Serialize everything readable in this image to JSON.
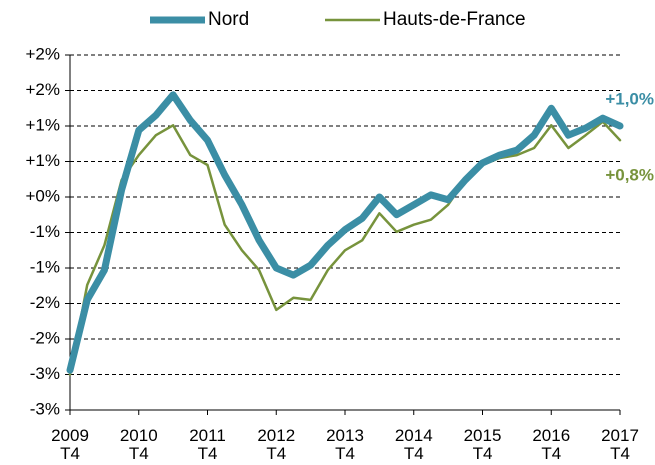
{
  "chart_data": {
    "type": "line",
    "categories": [
      "2009\nT4",
      null,
      null,
      null,
      "2010\nT4",
      null,
      null,
      null,
      "2011\nT4",
      null,
      null,
      null,
      "2012\nT4",
      null,
      null,
      null,
      "2013\nT4",
      null,
      null,
      null,
      "2014\nT4",
      null,
      null,
      null,
      "2015\nT4",
      null,
      null,
      null,
      "2016\nT4",
      null,
      null,
      null,
      "2017\nT4"
    ],
    "series": [
      {
        "name": "Nord",
        "color": "#3b8ea5",
        "values": [
          -2.44,
          -1.45,
          -1.03,
          0.1,
          0.94,
          1.15,
          1.44,
          1.08,
          0.8,
          0.31,
          -0.11,
          -0.61,
          -1.0,
          -1.1,
          -0.96,
          -0.68,
          -0.46,
          -0.3,
          0.0,
          -0.25,
          -0.11,
          0.03,
          -0.04,
          0.24,
          0.48,
          0.59,
          0.66,
          0.87,
          1.25,
          0.87,
          0.97,
          1.11,
          1.0
        ],
        "value_labels": [
          null,
          null,
          null,
          null,
          null,
          null,
          null,
          null,
          null,
          null,
          null,
          null,
          null,
          null,
          null,
          null,
          null,
          null,
          null,
          null,
          null,
          null,
          null,
          null,
          null,
          null,
          null,
          null,
          null,
          null,
          null,
          null,
          "+1,0%"
        ]
      },
      {
        "name": "Hauts-de-France",
        "color": "#77933c",
        "values": [
          -2.5,
          -1.24,
          -0.68,
          0.24,
          0.59,
          0.87,
          1.01,
          0.59,
          0.45,
          -0.39,
          -0.75,
          -1.03,
          -1.59,
          -1.42,
          -1.45,
          -1.03,
          -0.75,
          -0.61,
          -0.23,
          -0.49,
          -0.39,
          -0.32,
          -0.11,
          0.24,
          0.45,
          0.55,
          0.59,
          0.69,
          1.01,
          0.69,
          0.87,
          1.06,
          0.8
        ],
        "value_labels": [
          null,
          null,
          null,
          null,
          null,
          null,
          null,
          null,
          null,
          null,
          null,
          null,
          null,
          null,
          null,
          null,
          null,
          null,
          null,
          null,
          null,
          null,
          null,
          null,
          null,
          null,
          null,
          null,
          null,
          null,
          null,
          null,
          "+0,8%"
        ]
      }
    ],
    "ylim": [
      -3,
      2
    ],
    "yticks": [
      {
        "value": 2,
        "label": "+2%"
      },
      {
        "value": 1.5,
        "label": "+2%"
      },
      {
        "value": 1,
        "label": "+1%"
      },
      {
        "value": 0.5,
        "label": "+1%"
      },
      {
        "value": 0,
        "label": "+0%"
      },
      {
        "value": -0.5,
        "label": "-1%"
      },
      {
        "value": -1,
        "label": "-1%"
      },
      {
        "value": -1.5,
        "label": "-2%"
      },
      {
        "value": -2,
        "label": "-2%"
      },
      {
        "value": -2.5,
        "label": "-3%"
      },
      {
        "value": -3,
        "label": "-3%"
      }
    ],
    "grid": true,
    "legend": "top"
  }
}
